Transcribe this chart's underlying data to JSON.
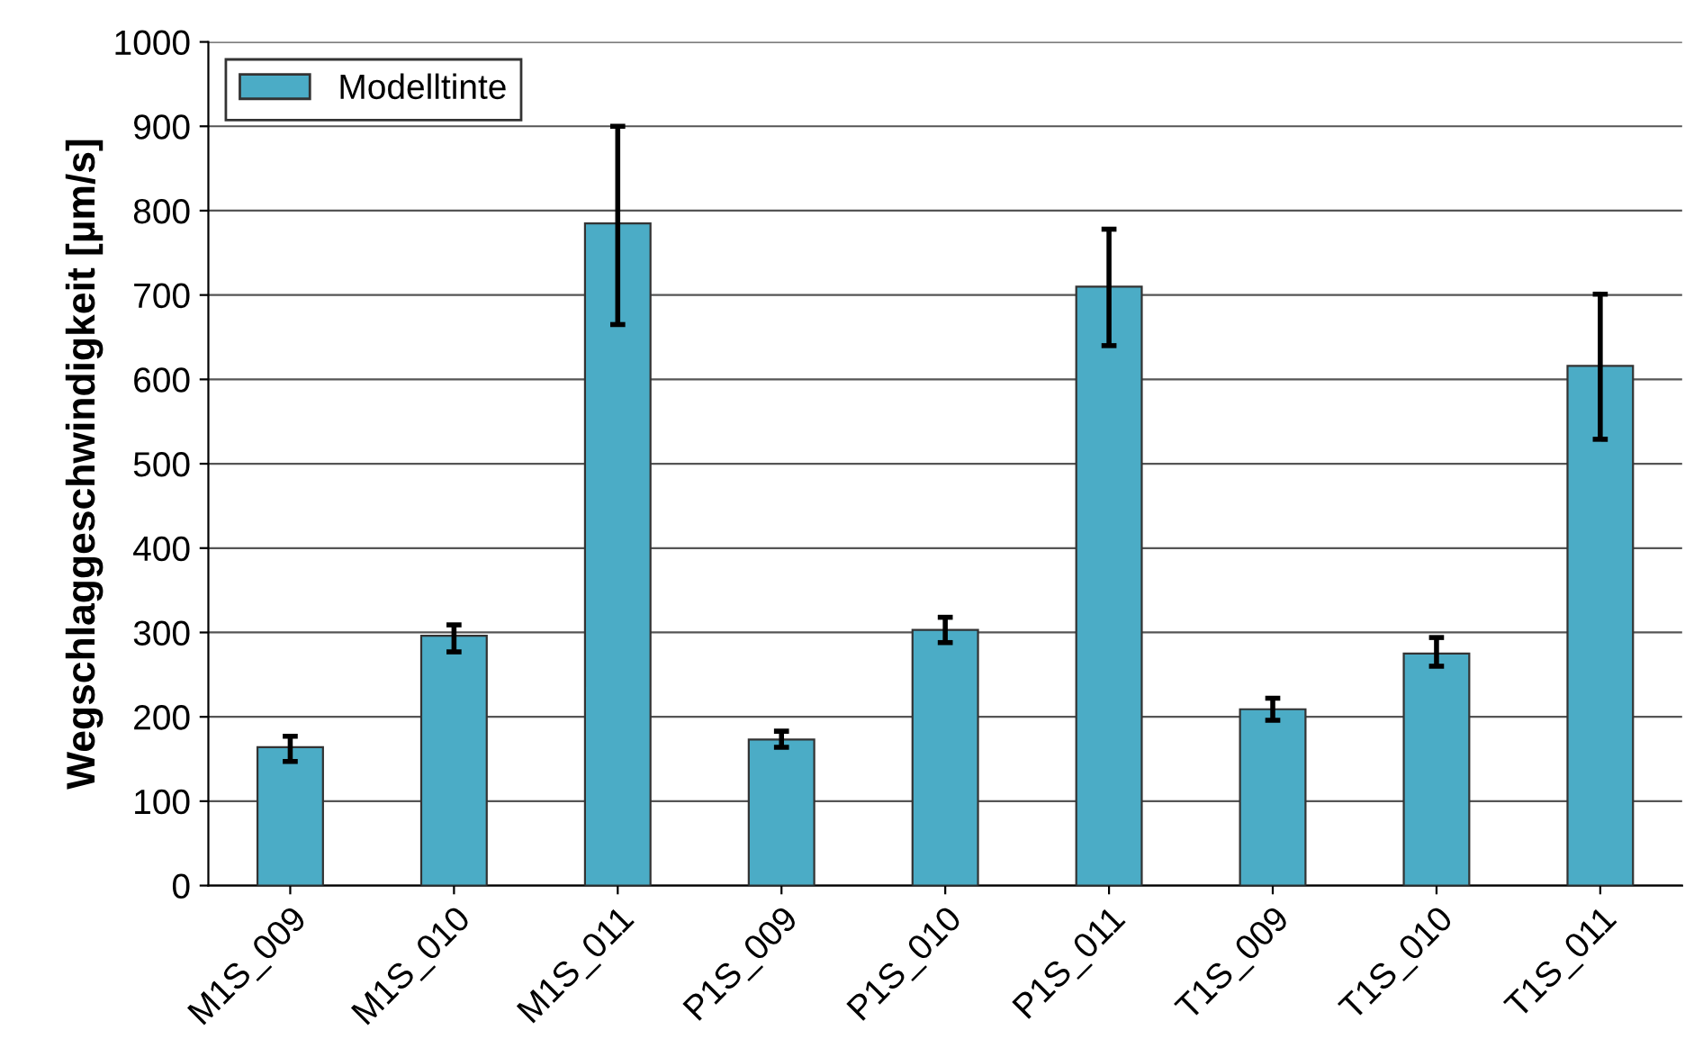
{
  "chart_data": {
    "type": "bar",
    "ylabel": "Wegschlaggeschwindigkeit [µm/s]",
    "categories": [
      "M1S_009",
      "M1S_010",
      "M1S_011",
      "P1S_009",
      "P1S_010",
      "P1S_011",
      "T1S_009",
      "T1S_010",
      "T1S_011"
    ],
    "series": [
      {
        "name": "Modelltinte",
        "color": "#4bacc6",
        "values": [
          164,
          296,
          785,
          173,
          303,
          710,
          209,
          275,
          616
        ],
        "errors": [
          [
            147,
            177
          ],
          [
            277,
            309
          ],
          [
            665,
            900
          ],
          [
            164,
            183
          ],
          [
            288,
            318
          ],
          [
            640,
            778
          ],
          [
            196,
            222
          ],
          [
            260,
            294
          ],
          [
            529,
            701
          ]
        ]
      }
    ],
    "ylim": [
      0,
      1000
    ],
    "yticks": [
      0,
      100,
      200,
      300,
      400,
      500,
      600,
      700,
      800,
      900,
      1000
    ],
    "grid": "y",
    "legend": "top left"
  }
}
